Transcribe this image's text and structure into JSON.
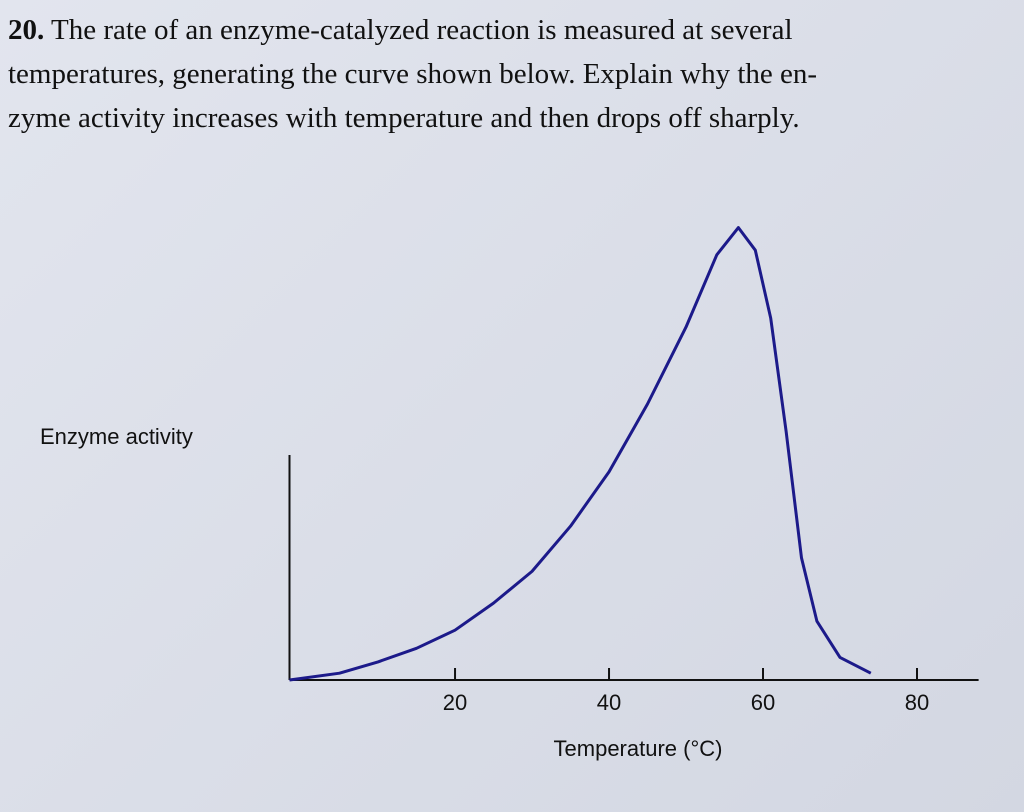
{
  "question": {
    "number": "20.",
    "lines": [
      "The rate of an enzyme-catalyzed reaction is measured at several",
      "temperatures, generating the curve shown below. Explain why the en-",
      "zyme activity increases with temperature and then drops off sharply."
    ]
  },
  "chart_data": {
    "type": "line",
    "ylabel": "Enzyme activity",
    "xlabel": "Temperature (°C)",
    "x": [
      -1.5,
      5,
      10,
      15,
      20,
      25,
      30,
      35,
      40,
      45,
      50,
      54,
      56.8,
      59,
      61,
      63,
      65,
      67,
      70,
      74
    ],
    "series": [
      {
        "name": "Enzyme activity",
        "color": "#1c1a8a",
        "values": [
          0,
          1.5,
          4,
          7,
          11,
          17,
          24,
          34,
          46,
          61,
          78,
          94,
          100,
          95,
          80,
          55,
          27,
          13,
          5,
          1.5
        ]
      }
    ],
    "xlim": [
      -1.5,
      88
    ],
    "ylim": [
      0,
      105
    ],
    "xticks": [
      20,
      40,
      60,
      80
    ]
  }
}
